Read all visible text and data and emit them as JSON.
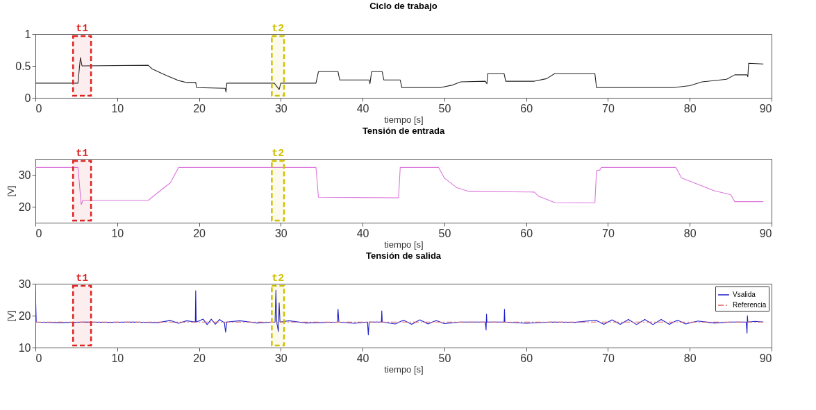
{
  "chart_data": [
    {
      "type": "line",
      "title": "Ciclo de trabajo",
      "xlabel": "tiempo [s]",
      "xlim": [
        0,
        90
      ],
      "xticks": [
        0,
        10,
        20,
        30,
        40,
        50,
        60,
        70,
        80,
        90
      ],
      "ylim": [
        0,
        1
      ],
      "yticks": [
        0,
        0.5,
        1
      ],
      "grid": false,
      "x": [
        0,
        5.2,
        5.5,
        5.7,
        13.8,
        14.3,
        16,
        17.5,
        18.5,
        19.6,
        19.7,
        23.2,
        23.3,
        23.4,
        29.2,
        29.5,
        29.8,
        30,
        34.3,
        34.6,
        37,
        37.2,
        40.8,
        40.9,
        41.1,
        42.4,
        42.6,
        44.6,
        44.8,
        49.5,
        51,
        52,
        55,
        55.2,
        55.3,
        57.3,
        57.5,
        61,
        62.5,
        63.5,
        68.4,
        68.6,
        78,
        80,
        81.5,
        84.5,
        85.5,
        87,
        87.1,
        87.2,
        89
      ],
      "series": [
        {
          "color": "#222222",
          "values": [
            0.23,
            0.23,
            0.63,
            0.5,
            0.51,
            0.45,
            0.35,
            0.27,
            0.24,
            0.24,
            0.16,
            0.15,
            0.09,
            0.23,
            0.23,
            0.18,
            0.13,
            0.23,
            0.23,
            0.41,
            0.41,
            0.28,
            0.28,
            0.22,
            0.41,
            0.41,
            0.28,
            0.28,
            0.16,
            0.16,
            0.2,
            0.25,
            0.26,
            0.22,
            0.38,
            0.38,
            0.26,
            0.26,
            0.3,
            0.38,
            0.38,
            0.16,
            0.16,
            0.19,
            0.25,
            0.29,
            0.36,
            0.36,
            0.33,
            0.54,
            0.53
          ]
        }
      ],
      "bands": [
        {
          "axis": "x",
          "from": 4.6,
          "to": 6.8,
          "label": "t1",
          "color": "#dd2222"
        },
        {
          "axis": "x",
          "from": 28.9,
          "to": 30.4,
          "label": "t2",
          "color": "#cfc000"
        }
      ]
    },
    {
      "type": "line",
      "title": "Tensión de entrada",
      "xlabel": "tiempo [s]",
      "ylabel": "[V]",
      "xlim": [
        0,
        90
      ],
      "xticks": [
        0,
        10,
        20,
        30,
        40,
        50,
        60,
        70,
        80,
        90
      ],
      "ylim": [
        15,
        35
      ],
      "yticks": [
        20,
        30
      ],
      "grid": false,
      "x": [
        0,
        5.2,
        5.6,
        5.8,
        13.8,
        15,
        16.5,
        17.5,
        34.3,
        34.6,
        44.4,
        44.6,
        49.3,
        50,
        51.5,
        53,
        61,
        61.5,
        63.5,
        68.4,
        68.6,
        69,
        69.2,
        78.3,
        79,
        81,
        83,
        85,
        85.5,
        89
      ],
      "series": [
        {
          "color": "#dd77dd",
          "values": [
            32.3,
            32.3,
            20.7,
            22,
            22,
            24.5,
            27.5,
            32.3,
            32.3,
            23,
            22.8,
            32.3,
            32.3,
            29,
            26,
            24.8,
            24.6,
            23.3,
            21.3,
            21.2,
            31.3,
            31.5,
            32.3,
            32.3,
            29,
            27,
            25,
            23.8,
            21.6,
            21.6
          ]
        }
      ],
      "bands": [
        {
          "axis": "x",
          "from": 4.6,
          "to": 6.8,
          "label": "t1",
          "color": "#dd2222"
        },
        {
          "axis": "x",
          "from": 28.9,
          "to": 30.4,
          "label": "t2",
          "color": "#cfc000"
        }
      ]
    },
    {
      "type": "line",
      "title": "Tensión de salida",
      "xlabel": "tiempo [s]",
      "ylabel": "[V]",
      "xlim": [
        0,
        90
      ],
      "xticks": [
        0,
        10,
        20,
        30,
        40,
        50,
        60,
        70,
        80,
        90
      ],
      "ylim": [
        10,
        30
      ],
      "yticks": [
        10,
        20,
        30
      ],
      "grid": false,
      "legend": "top right",
      "series": [
        {
          "name": "Vsalida",
          "color": "#1a1acc",
          "line_style": "solid",
          "x": [
            0,
            0.1,
            3,
            6,
            9,
            12,
            15,
            16.5,
            17.5,
            18.5,
            19.55,
            19.6,
            19.65,
            20.5,
            21,
            21.5,
            22,
            22.5,
            23.1,
            23.25,
            23.4,
            25,
            27,
            29.3,
            29.4,
            29.5,
            29.7,
            29.8,
            29.9,
            31,
            33,
            36.9,
            37,
            37.1,
            39,
            40.6,
            40.7,
            40.8,
            42.3,
            42.35,
            42.4,
            44,
            45,
            46,
            47,
            48,
            49,
            50,
            52,
            55,
            55.1,
            55.15,
            55.2,
            57.3,
            57.35,
            57.4,
            60,
            63,
            66,
            68.5,
            69.5,
            70.5,
            71.5,
            72.5,
            73.5,
            74.5,
            75.5,
            76.5,
            77.5,
            78.5,
            79.5,
            81,
            83,
            85,
            86.9,
            87,
            87.05,
            87.1,
            88,
            89
          ],
          "values": [
            28,
            18,
            17.8,
            18,
            17.9,
            18,
            17.8,
            18.5,
            17.6,
            18.4,
            18,
            27.8,
            18,
            18.9,
            17.2,
            18.9,
            17.3,
            18.8,
            17.8,
            14.8,
            18,
            18.4,
            17.7,
            18,
            28,
            18,
            15,
            24,
            18,
            18.4,
            17.7,
            18,
            22,
            18,
            17.6,
            18,
            14,
            18,
            18,
            21.5,
            18,
            17.4,
            18.6,
            17.3,
            18.7,
            17.4,
            18.5,
            17.5,
            18,
            18,
            15.5,
            20.5,
            18,
            18,
            22,
            18,
            17.6,
            18,
            17.9,
            18.6,
            17.3,
            18.7,
            17.3,
            18.8,
            17.2,
            18.8,
            17.2,
            18.8,
            17.3,
            18.6,
            17.4,
            18.3,
            17.7,
            18,
            18,
            14.5,
            20,
            18,
            18.2,
            18
          ]
        },
        {
          "name": "Referencia",
          "color": "#e06060",
          "line_style": "dashed",
          "x": [
            0,
            89
          ],
          "values": [
            18,
            18
          ]
        }
      ],
      "bands": [
        {
          "axis": "x",
          "from": 4.6,
          "to": 6.8,
          "label": "t1",
          "color": "#dd2222"
        },
        {
          "axis": "x",
          "from": 28.9,
          "to": 30.4,
          "label": "t2",
          "color": "#cfc000"
        }
      ]
    }
  ]
}
